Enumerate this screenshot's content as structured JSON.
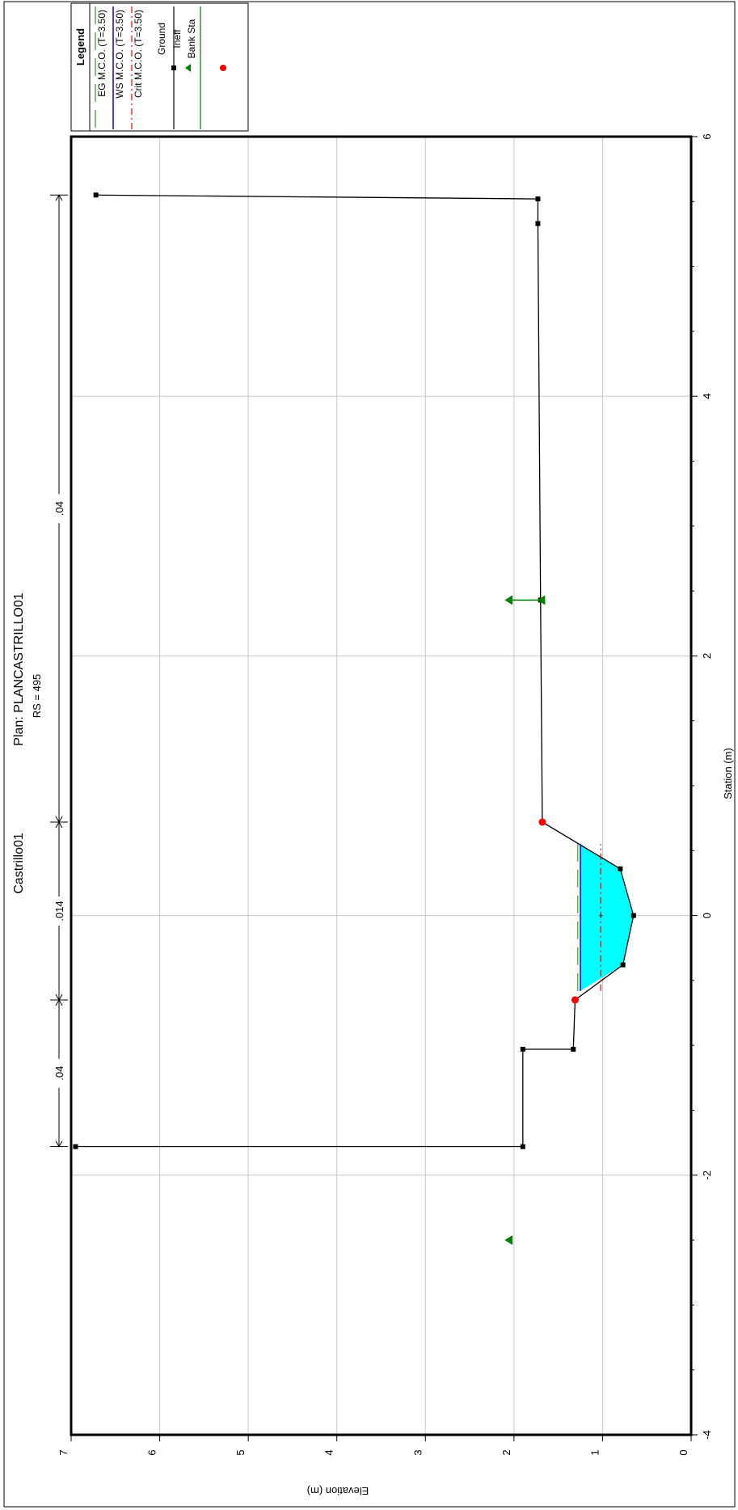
{
  "chart_data": {
    "type": "line",
    "title": "Castrillo01",
    "plan": "Plan: PLANCASTRILLO01",
    "subtitle": "RS = 495",
    "xlabel": "Station (m)",
    "ylabel": "Elevation (m)",
    "xlim": [
      -4,
      6
    ],
    "ylim": [
      0,
      7
    ],
    "x_ticks": [
      -4,
      -2,
      0,
      2,
      4,
      6
    ],
    "y_ticks": [
      0,
      1,
      2,
      3,
      4,
      5,
      6,
      7
    ],
    "grid": true,
    "orientation": "rotated-90-clockwise",
    "legend": {
      "title": "Legend",
      "position": "top-right",
      "entries": [
        {
          "label": "EG M.C.O. (T=3.50)",
          "color": "#339933",
          "style": "long-dash"
        },
        {
          "label": "WS M.C.O. (T=3.50)",
          "color": "#0000ff",
          "style": "solid"
        },
        {
          "label": "Crit M.C.O. (T=3.50)",
          "color": "#ff0000",
          "style": "dash-dot"
        },
        {
          "label": "Ground",
          "color": "#000000",
          "style": "line-square"
        },
        {
          "label": "Ineff",
          "color": "#008000",
          "style": "triangle"
        },
        {
          "label": "Bank Sta",
          "color": "#ff0000",
          "style": "circle"
        }
      ]
    },
    "series": [
      {
        "name": "Ground",
        "color": "#000000",
        "points": [
          {
            "x": -1.78,
            "y": 6.95
          },
          {
            "x": -1.78,
            "y": 1.9
          },
          {
            "x": -1.03,
            "y": 1.9
          },
          {
            "x": -1.03,
            "y": 1.33
          },
          {
            "x": -0.65,
            "y": 1.31
          },
          {
            "x": -0.38,
            "y": 0.77
          },
          {
            "x": 0.0,
            "y": 0.65
          },
          {
            "x": 0.36,
            "y": 0.8
          },
          {
            "x": 0.72,
            "y": 1.68
          },
          {
            "x": 2.43,
            "y": 1.7
          },
          {
            "x": 5.33,
            "y": 1.73
          },
          {
            "x": 5.52,
            "y": 1.73
          },
          {
            "x": 5.55,
            "y": 6.72
          }
        ]
      },
      {
        "name": "WS M.C.O. (T=3.50)",
        "color": "#0000ff",
        "y": 1.25,
        "x_range": [
          -0.58,
          0.55
        ]
      },
      {
        "name": "EG M.C.O. (T=3.50)",
        "color": "#339933",
        "y": 1.28,
        "x_range": [
          -0.58,
          0.55
        ]
      },
      {
        "name": "Crit M.C.O. (T=3.50)",
        "color": "#ff0000",
        "y": 1.02,
        "x_range": [
          -0.58,
          0.55
        ]
      }
    ],
    "bank_stations": [
      {
        "x": -0.65,
        "y": 1.31
      },
      {
        "x": 0.72,
        "y": 1.68
      }
    ],
    "ineffective": [
      {
        "x": 2.43,
        "y_bottom": 1.7,
        "y_top": 2.05
      },
      {
        "x": -2.5,
        "y_top": 2.05
      }
    ],
    "ineff_marker_ys": [
      2.05,
      1.7
    ],
    "water_fill_color": "#00ffff",
    "mannings": [
      {
        "label": ".04",
        "x_start": -1.78,
        "x_end": -0.65
      },
      {
        "label": ".014",
        "x_start": -0.65,
        "x_end": 0.72
      },
      {
        "label": ".04",
        "x_start": 0.72,
        "x_end": 5.55
      }
    ]
  }
}
